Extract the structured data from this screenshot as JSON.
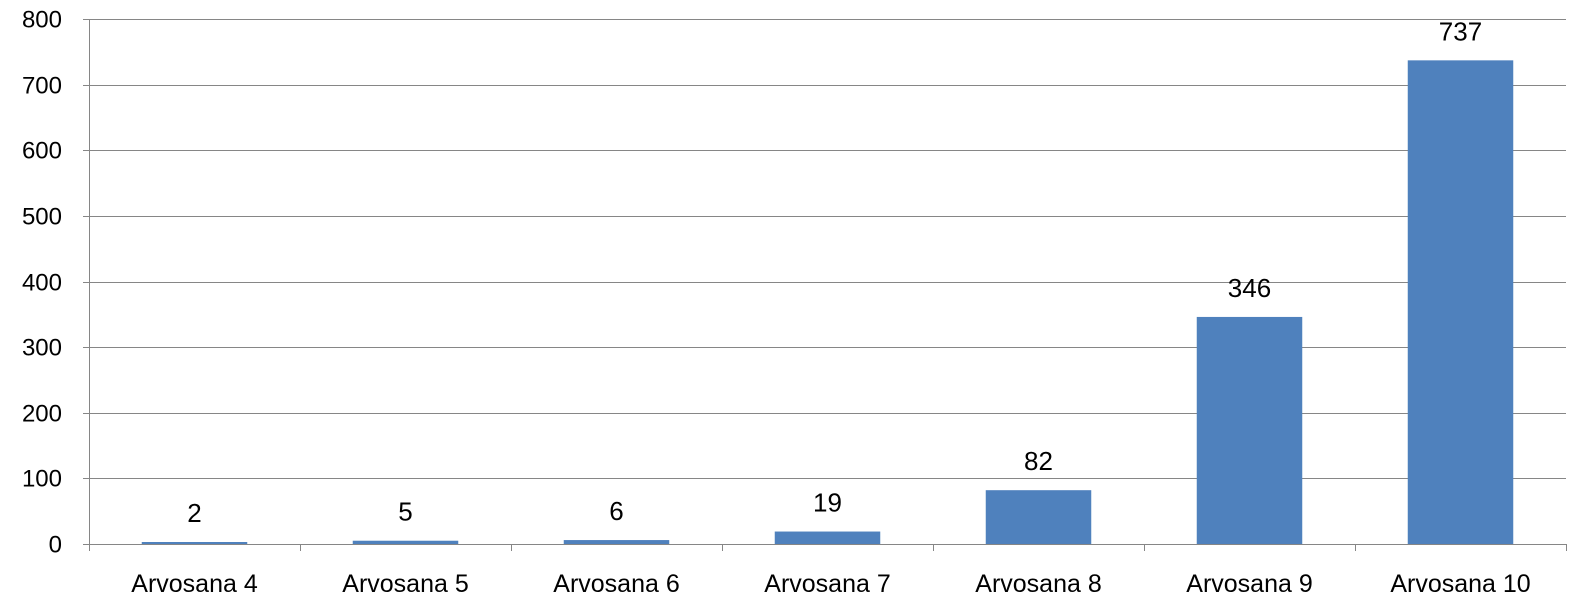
{
  "chart_data": {
    "type": "bar",
    "title": "",
    "xlabel": "",
    "ylabel": "",
    "categories": [
      "Arvosana 4",
      "Arvosana 5",
      "Arvosana 6",
      "Arvosana 7",
      "Arvosana 8",
      "Arvosana 9",
      "Arvosana 10"
    ],
    "values": [
      2,
      5,
      6,
      19,
      82,
      346,
      737
    ],
    "data_labels": [
      "2",
      "5",
      "6",
      "19",
      "82",
      "346",
      "737"
    ],
    "ylim": [
      0,
      800
    ],
    "yticks": [
      "0",
      "100",
      "200",
      "300",
      "400",
      "500",
      "600",
      "700",
      "800"
    ],
    "grid": true,
    "legend": "none",
    "bar_color": "#4F81BD",
    "grid_color": "#868686"
  }
}
